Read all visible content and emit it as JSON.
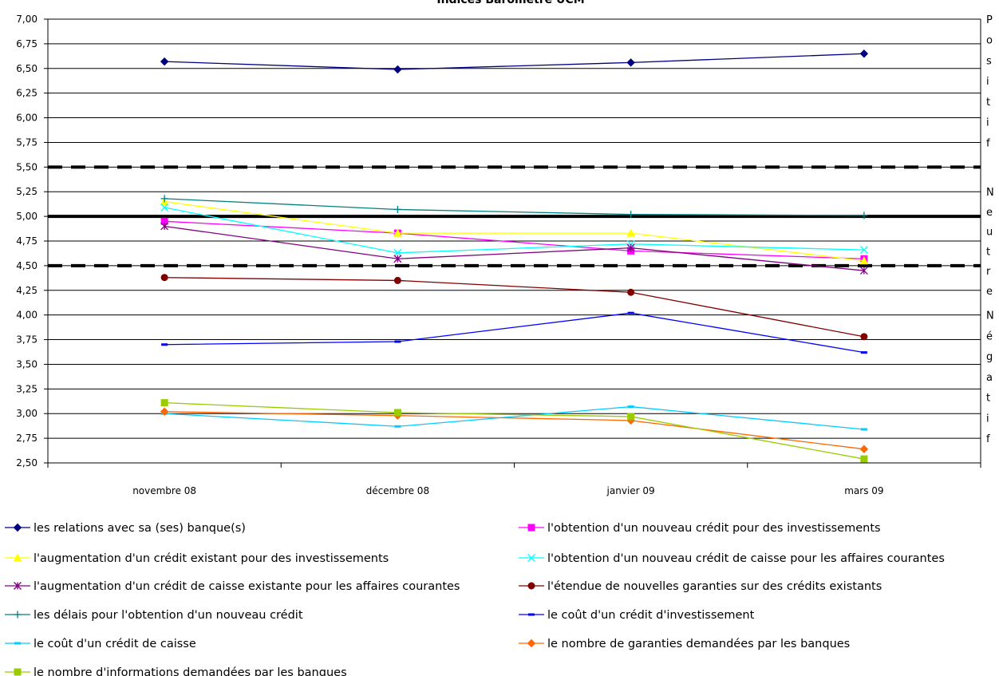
{
  "chart_data": {
    "type": "line",
    "title": "Indices Baromètre UCM",
    "xlabel": "",
    "ylabel": "",
    "categories": [
      "novembre 08",
      "décembre 08",
      "janvier 09",
      "mars 09"
    ],
    "ylim": [
      2.5,
      7.0
    ],
    "yticks": [
      "7,00",
      "6,75",
      "6,50",
      "6,25",
      "6,00",
      "5,75",
      "5,50",
      "5,25",
      "5,00",
      "4,75",
      "4,50",
      "4,25",
      "4,00",
      "3,75",
      "3,50",
      "3,25",
      "3,00",
      "2,75",
      "2,50"
    ],
    "grid": true,
    "legend_position": "bottom",
    "reference_lines": [
      {
        "value": 5.5,
        "style": "dashed"
      },
      {
        "value": 5.0,
        "style": "solid"
      },
      {
        "value": 4.5,
        "style": "dashed"
      }
    ],
    "zone_labels": [
      {
        "text": "Positif",
        "from": 7.0,
        "to": 5.75
      },
      {
        "text": "Neutre",
        "from": 5.25,
        "to": 4.25
      },
      {
        "text": "Négatif",
        "from": 4.0,
        "to": 2.75
      }
    ],
    "series": [
      {
        "name": "les relations avec sa (ses) banque(s)",
        "color": "#000080",
        "marker": "diamond",
        "values": [
          6.57,
          6.49,
          6.56,
          6.65
        ]
      },
      {
        "name": "l'obtention d'un nouveau crédit pour des investissements",
        "color": "#ff00ff",
        "marker": "square",
        "values": [
          4.95,
          4.83,
          4.65,
          4.57
        ]
      },
      {
        "name": "l'augmentation d'un crédit existant pour des investissements",
        "color": "#ffff00",
        "marker": "triangle",
        "values": [
          5.15,
          4.83,
          4.83,
          4.55
        ]
      },
      {
        "name": "l'obtention d'un nouveau crédit de caisse pour les affaires courantes",
        "color": "#00ffff",
        "marker": "x",
        "values": [
          5.09,
          4.63,
          4.72,
          4.66
        ]
      },
      {
        "name": "l'augmentation d'un crédit de caisse existante pour les affaires courantes",
        "color": "#800080",
        "marker": "star",
        "values": [
          4.9,
          4.57,
          4.68,
          4.45
        ]
      },
      {
        "name": "l'étendue de nouvelles garanties sur des crédits existants",
        "color": "#800000",
        "marker": "circle",
        "values": [
          4.38,
          4.35,
          4.23,
          3.78
        ]
      },
      {
        "name": "les délais pour l'obtention d'un nouveau crédit",
        "color": "#008080",
        "marker": "plus",
        "values": [
          5.18,
          5.07,
          5.02,
          5.01
        ]
      },
      {
        "name": "le coût d'un crédit d'investissement",
        "color": "#0000ff",
        "marker": "dash",
        "values": [
          3.7,
          3.73,
          4.02,
          3.62
        ]
      },
      {
        "name": "le coût d'un crédit de caisse",
        "color": "#00ccff",
        "marker": "dash",
        "values": [
          3.0,
          2.87,
          3.07,
          2.84
        ]
      },
      {
        "name": "le nombre de garanties demandées par les banques",
        "color": "#ff6600",
        "marker": "diamond",
        "values": [
          3.02,
          2.98,
          2.93,
          2.64
        ]
      },
      {
        "name": "le nombre d'informations demandées par les banques",
        "color": "#99cc00",
        "marker": "square",
        "values": [
          3.11,
          3.01,
          2.97,
          2.54
        ]
      }
    ]
  }
}
